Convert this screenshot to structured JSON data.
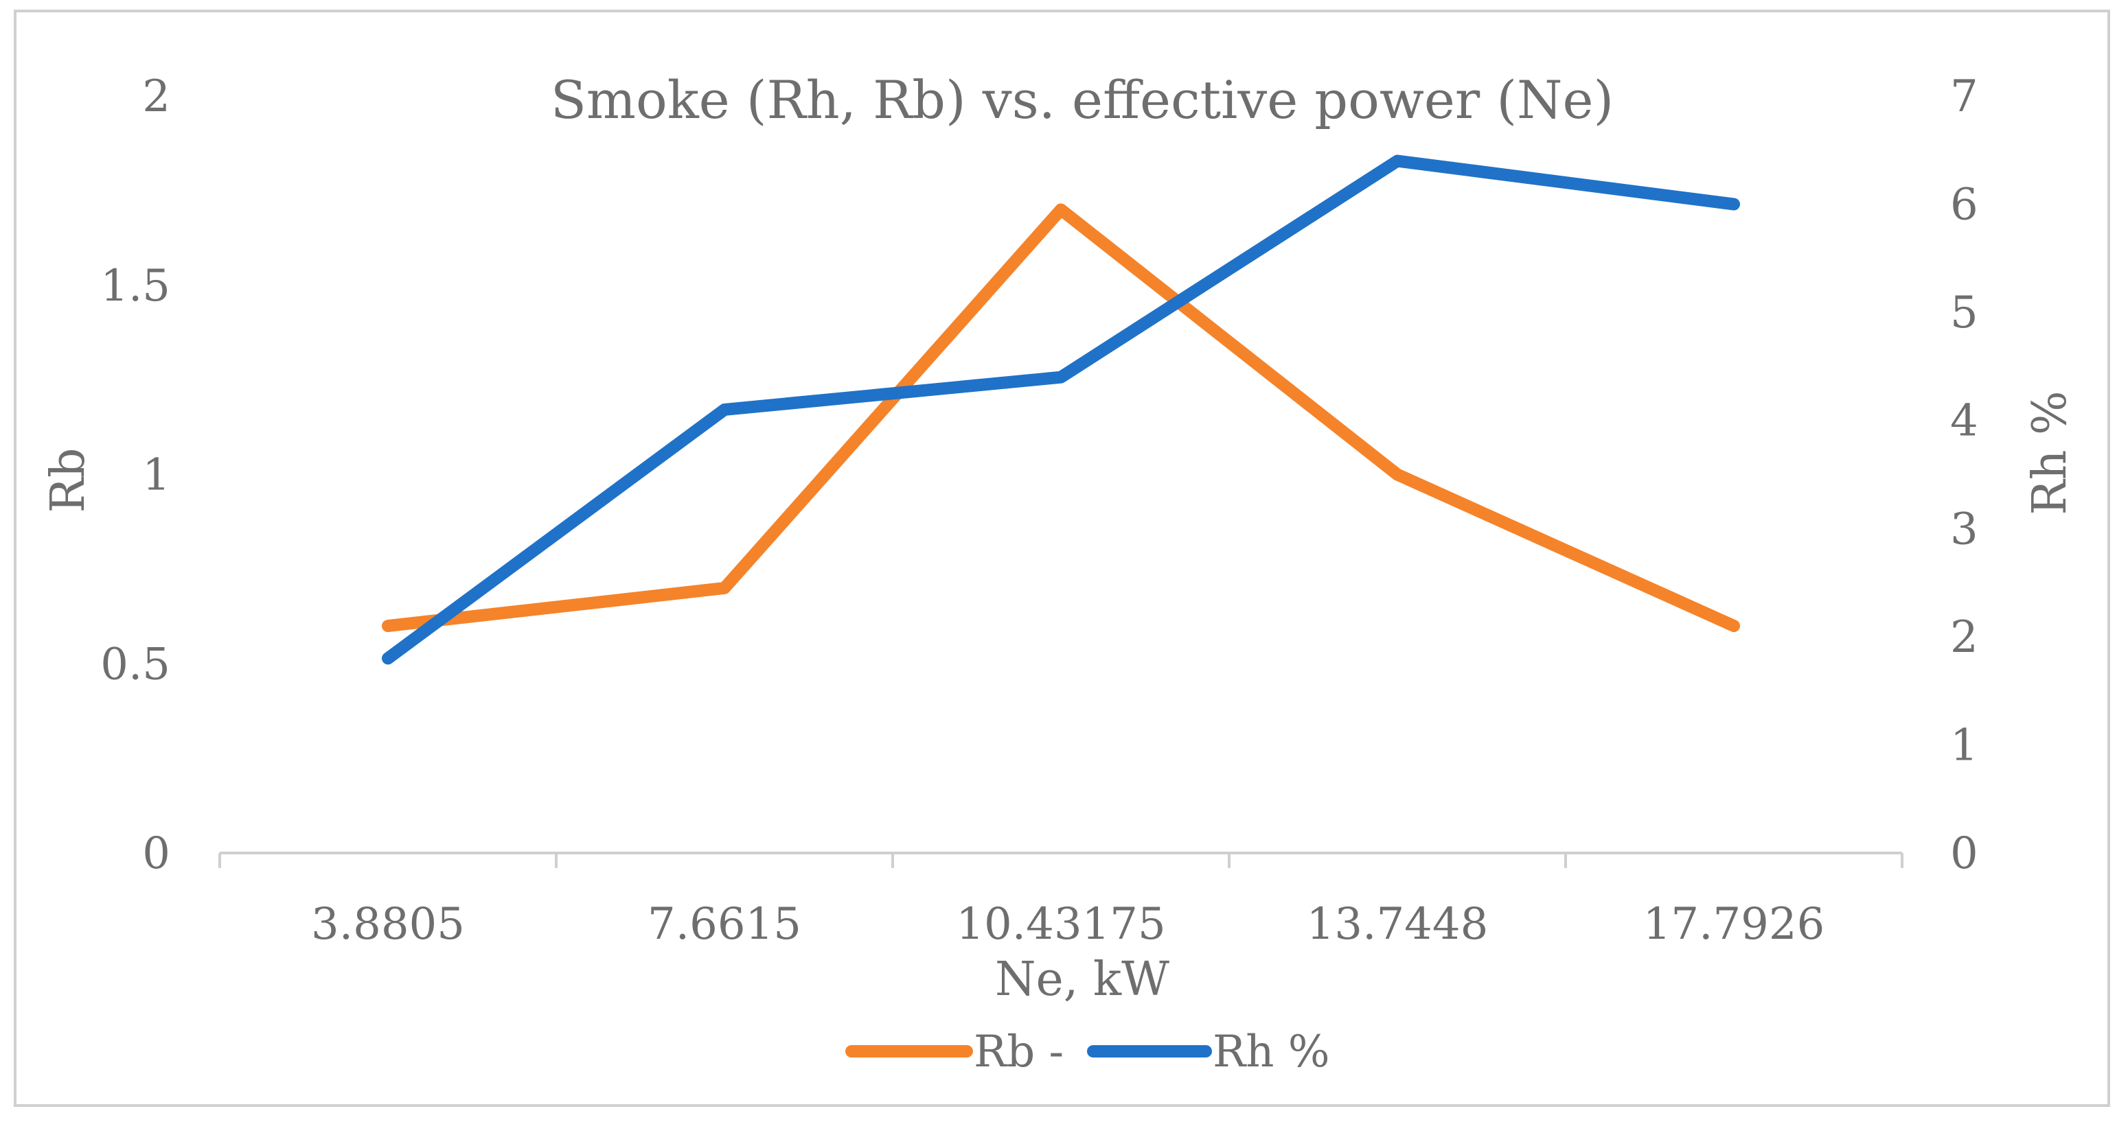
{
  "chart_data": {
    "type": "line",
    "title": "Smoke (Rh, Rb) vs. effective power (Ne)",
    "xlabel": "Ne, kW",
    "ylabel_left": "Rb",
    "ylabel_right": "Rh %",
    "categories": [
      "3.8805",
      "7.6615",
      "10.43175",
      "13.7448",
      "17.7926"
    ],
    "y_left": {
      "lim": [
        0,
        2
      ],
      "ticks": [
        "0",
        "0.5",
        "1",
        "1.5",
        "2"
      ]
    },
    "y_right": {
      "lim": [
        0,
        7
      ],
      "ticks": [
        "0",
        "1",
        "2",
        "3",
        "4",
        "5",
        "6",
        "7"
      ]
    },
    "grid": false,
    "legend_position": "bottom",
    "series": [
      {
        "name": "Rb -",
        "axis": "left",
        "color": "#f5832a",
        "values": [
          0.6,
          0.7,
          1.7,
          1.0,
          0.6
        ]
      },
      {
        "name": "Rh %",
        "axis": "right",
        "color": "#1f72c8",
        "values": [
          1.8,
          4.1,
          4.4,
          6.4,
          6.0
        ]
      }
    ]
  }
}
